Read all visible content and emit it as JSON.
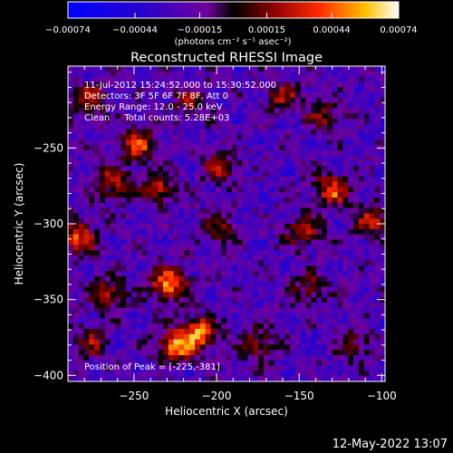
{
  "chart_data": {
    "type": "heatmap",
    "title": "Reconstructed RHESSI Image",
    "xlabel": "Heliocentric X (arcsec)",
    "ylabel": "Heliocentric Y (arcsec)",
    "xlim": [
      -290,
      -98
    ],
    "ylim": [
      -404,
      -196
    ],
    "x_ticks": [
      -250,
      -200,
      -150,
      -100
    ],
    "y_ticks": [
      -250,
      -300,
      -350,
      -400
    ],
    "x_tick_labels": [
      "−250",
      "−200",
      "−150",
      "−100"
    ],
    "y_tick_labels": [
      "−250",
      "−300",
      "−350",
      "−400"
    ],
    "colorbar": {
      "min": -0.00074,
      "max": 0.00074,
      "ticks": [
        -0.00074,
        -0.00044,
        -0.00015,
        0.00015,
        0.00044,
        0.00074
      ],
      "tick_labels": [
        "−0.00074",
        "−0.00044",
        "−0.00015",
        "0.00015",
        "0.00044",
        "0.00074"
      ],
      "unit_label": "(photons cm⁻² s⁻¹ asec⁻²)"
    },
    "annotations": [
      "11-Jul-2012 15:24:52.000 to 15:30:52.000",
      "Detectors: 3F 5F 6F 7F 8F, Att 0",
      "Energy Range: 12.0 - 25.0 keV",
      "Clean     Total counts: 5.28E+03"
    ],
    "peak_label": "Position of Peak = [-225,-381]",
    "peak": [
      -225,
      -381
    ],
    "hotspots": [
      {
        "x": -229,
        "y": -340,
        "value": 0.00074
      },
      {
        "x": -210,
        "y": -372,
        "value": 0.0007
      },
      {
        "x": -225,
        "y": -381,
        "value": 0.00074
      },
      {
        "x": -248,
        "y": -248,
        "value": 0.0006
      },
      {
        "x": -262,
        "y": -273,
        "value": 0.0005
      },
      {
        "x": -236,
        "y": -277,
        "value": 0.00048
      },
      {
        "x": -276,
        "y": -218,
        "value": 0.00046
      },
      {
        "x": -284,
        "y": -309,
        "value": 0.0006
      },
      {
        "x": -266,
        "y": -346,
        "value": 0.00046
      },
      {
        "x": -197,
        "y": -262,
        "value": 0.00042
      },
      {
        "x": -198,
        "y": -305,
        "value": 0.00038
      },
      {
        "x": -216,
        "y": -220,
        "value": 0.00036
      },
      {
        "x": -160,
        "y": -216,
        "value": 0.0004
      },
      {
        "x": -135,
        "y": -229,
        "value": 0.00034
      },
      {
        "x": -130,
        "y": -278,
        "value": 0.0006
      },
      {
        "x": -148,
        "y": -305,
        "value": 0.00048
      },
      {
        "x": -105,
        "y": -298,
        "value": 0.00046
      },
      {
        "x": -144,
        "y": -343,
        "value": 0.00034
      },
      {
        "x": -175,
        "y": -380,
        "value": 0.0004
      },
      {
        "x": -116,
        "y": -379,
        "value": 0.0003
      },
      {
        "x": -276,
        "y": -378,
        "value": 0.00036
      }
    ]
  },
  "footer": {
    "timestamp": "12-May-2022 13:07"
  },
  "colors": {
    "background": "#000000",
    "text": "#ffffff"
  }
}
